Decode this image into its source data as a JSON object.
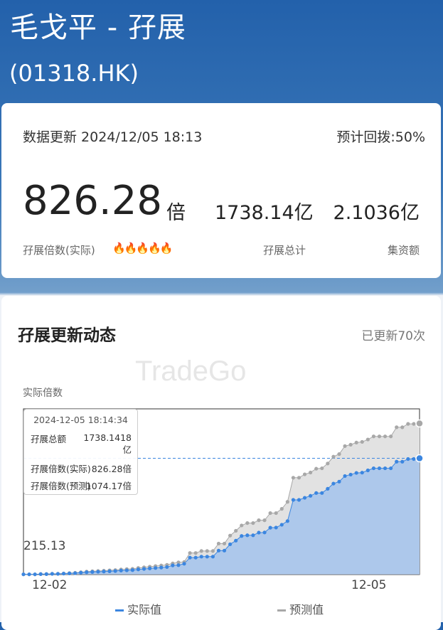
{
  "header": {
    "title": "毛戈平 - 孖展",
    "code": "(01318.HK)"
  },
  "summary": {
    "update_label": "数据更新 2024/12/05 18:13",
    "clawback": "预计回拨:50%",
    "multiple": "826.28",
    "multiple_unit": "倍",
    "margin_total": "1738.14亿",
    "fund_raised": "2.1036亿",
    "multiple_label": "孖展倍数(实际)",
    "heat_icons": "🔥🔥🔥🔥🔥",
    "heat_level": 5,
    "margin_total_label": "孖展总计",
    "fund_raised_label": "集资额"
  },
  "dynamics": {
    "title": "孖展更新动态",
    "update_count": "已更新70次",
    "watermark": "TradeGo"
  },
  "tooltip": {
    "time": "2024-12-05 18:14:34",
    "rows": [
      {
        "label": "孖展总额",
        "value": "1738.1418\n亿"
      },
      {
        "label": "孖展倍数(实际)",
        "value": "826.28倍"
      },
      {
        "label": "孖展倍数(预测)",
        "value": "1074.17倍"
      }
    ]
  },
  "chart_data": {
    "type": "area",
    "ylabel": "实际倍数",
    "ylim": [
      0,
      1178
    ],
    "y_ticks": [
      "215.13"
    ],
    "x_ticks": [
      "12-02",
      "12-05"
    ],
    "legend_placement": "bottom",
    "colors": {
      "actual": "#3b86e0",
      "predicted": "#a8a8a8",
      "actual_fill": "#adc8eb",
      "predicted_fill": "#e2e2e2"
    },
    "series": [
      {
        "name": "实际值",
        "values": [
          0,
          0,
          0,
          1.7,
          1.7,
          3.4,
          3.4,
          5,
          6.7,
          8.4,
          11.7,
          15,
          16.8,
          18.4,
          20,
          22,
          23.5,
          26.8,
          28.5,
          30,
          35,
          38.5,
          42,
          45,
          48.6,
          52,
          63.6,
          65.3,
          75.4,
          119,
          119,
          126,
          126,
          126,
          169,
          169,
          214,
          240,
          273,
          278,
          278,
          297,
          298,
          332,
          333,
          353,
          379,
          530,
          530,
          545,
          559,
          579,
          579,
          609,
          646,
          660,
          700,
          710,
          722,
          724,
          740,
          755,
          755,
          755,
          755,
          802,
          802,
          821,
          821,
          826.28
        ]
      },
      {
        "name": "预测值",
        "values": [
          0,
          0,
          0,
          2.2,
          2.2,
          4.4,
          4.4,
          6.5,
          8.7,
          11,
          15,
          19.5,
          21.8,
          24,
          26,
          28.6,
          30.5,
          34.8,
          37,
          39,
          45.5,
          50,
          54.6,
          58.5,
          63,
          67.6,
          78,
          85,
          88,
          152,
          152,
          166,
          166,
          166,
          219,
          219,
          276,
          310,
          348,
          365,
          365,
          385,
          385,
          436,
          436,
          466,
          516,
          688,
          688,
          712,
          725,
          752,
          755,
          789,
          838,
          856,
          913,
          923,
          938,
          943,
          960,
          982,
          982,
          982,
          982,
          1047,
          1047,
          1071,
          1071,
          1074.17
        ]
      }
    ],
    "highlight": {
      "x_index": 69,
      "value": 826.28
    }
  }
}
